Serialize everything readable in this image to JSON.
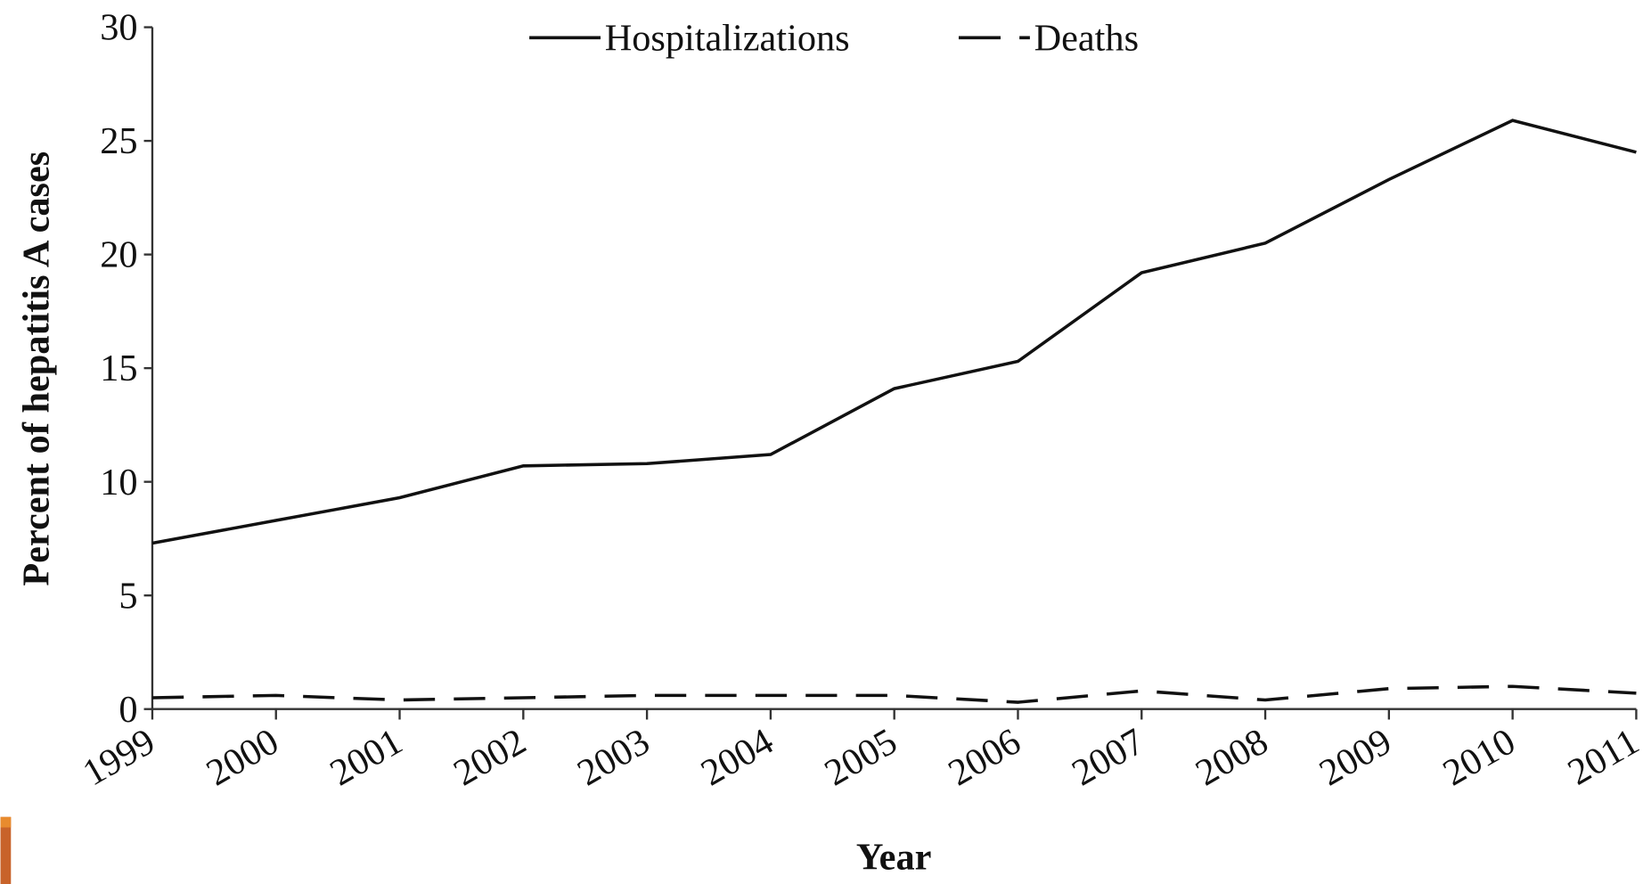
{
  "chart_data": {
    "type": "line",
    "xlabel": "Year",
    "ylabel": "Percent of hepatitis A cases",
    "categories": [
      "1999",
      "2000",
      "2001",
      "2002",
      "2003",
      "2004",
      "2005",
      "2006",
      "2007",
      "2008",
      "2009",
      "2010",
      "2011"
    ],
    "series": [
      {
        "name": "Hospitalizations",
        "color": "#111111",
        "dash": "solid",
        "values": [
          7.3,
          8.3,
          9.3,
          10.7,
          10.8,
          11.2,
          14.1,
          15.3,
          19.2,
          20.5,
          23.3,
          25.9,
          24.5
        ]
      },
      {
        "name": "Deaths",
        "color": "#111111",
        "dash": "dashed",
        "values": [
          0.5,
          0.6,
          0.4,
          0.5,
          0.6,
          0.6,
          0.6,
          0.3,
          0.8,
          0.4,
          0.9,
          1.0,
          0.7
        ]
      }
    ],
    "ylim": [
      0,
      30
    ],
    "yticks": [
      0,
      5,
      10,
      15,
      20,
      25,
      30
    ],
    "grid": false,
    "legend": "top"
  }
}
